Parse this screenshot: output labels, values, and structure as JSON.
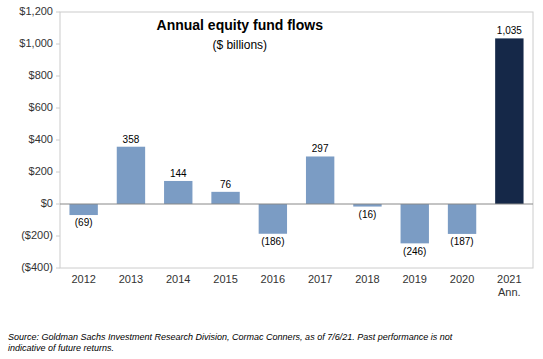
{
  "chart_data": {
    "type": "bar",
    "title": "Annual equity fund flows",
    "subtitle": "($ billions)",
    "categories": [
      "2012",
      "2013",
      "2014",
      "2015",
      "2016",
      "2017",
      "2018",
      "2019",
      "2020",
      "2021\nAnn."
    ],
    "values": [
      -69,
      358,
      144,
      76,
      -186,
      297,
      -16,
      -246,
      -187,
      1035
    ],
    "value_labels": [
      "(69)",
      "358",
      "144",
      "76",
      "(186)",
      "297",
      "(16)",
      "(246)",
      "(187)",
      "1,035"
    ],
    "colors": [
      "#7b9cc4",
      "#7b9cc4",
      "#7b9cc4",
      "#7b9cc4",
      "#7b9cc4",
      "#7b9cc4",
      "#7b9cc4",
      "#7b9cc4",
      "#7b9cc4",
      "#152848"
    ],
    "ylim": [
      -400,
      1200
    ],
    "yticks": [
      {
        "value": -400,
        "label": "($400)"
      },
      {
        "value": -200,
        "label": "($200)"
      },
      {
        "value": 0,
        "label": "$0"
      },
      {
        "value": 200,
        "label": "$200"
      },
      {
        "value": 400,
        "label": "$400"
      },
      {
        "value": 600,
        "label": "$600"
      },
      {
        "value": 800,
        "label": "$800"
      },
      {
        "value": 1000,
        "label": "$1,000"
      },
      {
        "value": 1200,
        "label": "$1,200"
      }
    ],
    "data_labels": true,
    "grid": false,
    "annotations": [
      "Source: Goldman Sachs Investment Research Division, Cormac Conners, as of 7/6/21. Past performance is not\nindicative of future returns."
    ]
  }
}
